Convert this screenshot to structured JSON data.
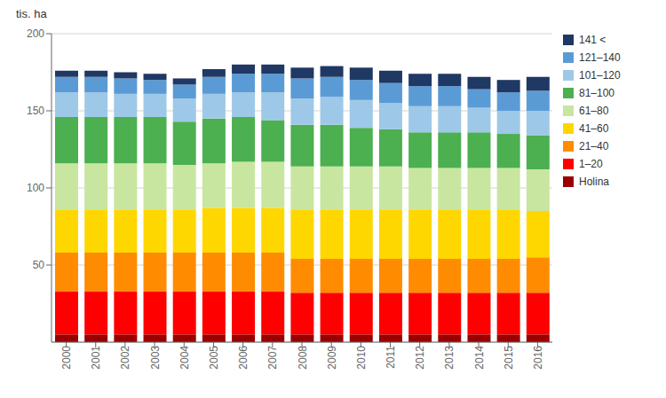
{
  "chart_data": {
    "type": "bar",
    "stacked": true,
    "y_label": "tis. ha",
    "categories": [
      "2000",
      "2001",
      "2002",
      "2003",
      "2004",
      "2005",
      "2006",
      "2007",
      "2008",
      "2009",
      "2010",
      "2011",
      "2012",
      "2013",
      "2014",
      "2015",
      "2016"
    ],
    "series": [
      {
        "name": "Holina",
        "color": "#9b0000",
        "values": [
          5,
          5,
          5,
          5,
          5,
          5,
          5,
          5,
          5,
          5,
          5,
          5,
          5,
          5,
          5,
          5,
          5
        ]
      },
      {
        "name": "1–20",
        "color": "#ff0000",
        "values": [
          28,
          28,
          28,
          28,
          28,
          28,
          28,
          28,
          27,
          27,
          27,
          27,
          27,
          27,
          27,
          27,
          27
        ]
      },
      {
        "name": "21–40",
        "color": "#ff8c00",
        "values": [
          25,
          25,
          25,
          25,
          25,
          25,
          25,
          25,
          22,
          22,
          22,
          22,
          22,
          22,
          22,
          22,
          23
        ]
      },
      {
        "name": "41–60",
        "color": "#ffd700",
        "values": [
          28,
          28,
          28,
          28,
          28,
          29,
          29,
          29,
          32,
          32,
          32,
          32,
          32,
          32,
          32,
          32,
          30
        ]
      },
      {
        "name": "61–80",
        "color": "#c8e6a0",
        "values": [
          30,
          30,
          30,
          30,
          29,
          29,
          30,
          30,
          28,
          28,
          28,
          28,
          27,
          27,
          27,
          27,
          27
        ]
      },
      {
        "name": "81–100",
        "color": "#4caf50",
        "values": [
          30,
          30,
          30,
          30,
          28,
          29,
          29,
          27,
          27,
          27,
          25,
          24,
          23,
          23,
          23,
          22,
          22
        ]
      },
      {
        "name": "101–120",
        "color": "#9ec8e8",
        "values": [
          16,
          16,
          15,
          15,
          15,
          16,
          16,
          18,
          17,
          18,
          18,
          17,
          17,
          17,
          16,
          15,
          16
        ]
      },
      {
        "name": "121–140",
        "color": "#5b9bd5",
        "values": [
          10,
          10,
          10,
          9,
          9,
          11,
          12,
          12,
          13,
          13,
          13,
          13,
          13,
          13,
          12,
          12,
          13
        ]
      },
      {
        "name": "141 <",
        "color": "#1f3864",
        "values": [
          4,
          4,
          4,
          4,
          4,
          5,
          6,
          6,
          7,
          7,
          8,
          8,
          8,
          8,
          8,
          8,
          9
        ]
      }
    ],
    "ylim": [
      0,
      200
    ],
    "yticks": [
      50,
      100,
      150,
      200
    ],
    "grid": true,
    "legend": "right"
  }
}
